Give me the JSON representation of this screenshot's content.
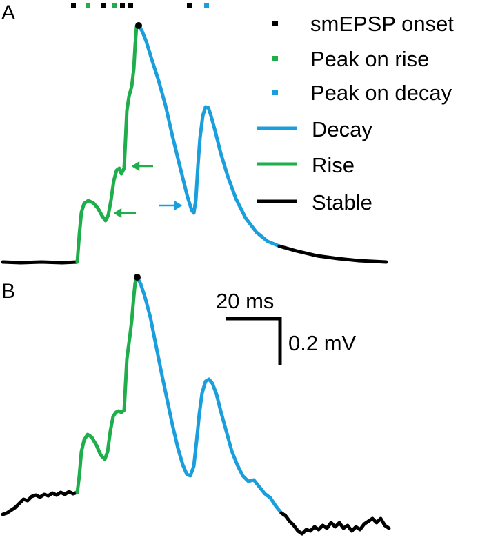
{
  "panels": [
    {
      "label": "A",
      "traces": {
        "stable": "#000000",
        "rise": "#1fae4b",
        "decay": "#1a9fdc"
      }
    },
    {
      "label": "B",
      "traces": {
        "stable": "#000000",
        "rise": "#1fae4b",
        "decay": "#1a9fdc"
      }
    }
  ],
  "legend": {
    "items": [
      {
        "label": "smEPSP onset",
        "marker": "square",
        "color": "#000000"
      },
      {
        "label": "Peak on rise",
        "marker": "square",
        "color": "#1fae4b"
      },
      {
        "label": "Peak on decay",
        "marker": "square",
        "color": "#1a9fdc"
      },
      {
        "label": "Decay",
        "marker": "line",
        "color": "#1a9fdc"
      },
      {
        "label": "Rise",
        "marker": "line",
        "color": "#1fae4b"
      },
      {
        "label": "Stable",
        "marker": "line",
        "color": "#000000"
      }
    ]
  },
  "scale_bar": {
    "time_label": "20 ms",
    "voltage_label": "0.2 mV"
  },
  "event_markers": [
    "smEPSP onset",
    "Peak on rise",
    "smEPSP onset",
    "Peak on rise",
    "smEPSP onset",
    "smEPSP onset",
    "smEPSP onset",
    "Peak on decay"
  ],
  "arrows": [
    {
      "color": "#1fae4b",
      "points_to": "Rise"
    },
    {
      "color": "#1fae4b",
      "points_to": "Rise"
    },
    {
      "color": "#1a9fdc",
      "points_to": "Decay"
    }
  ]
}
